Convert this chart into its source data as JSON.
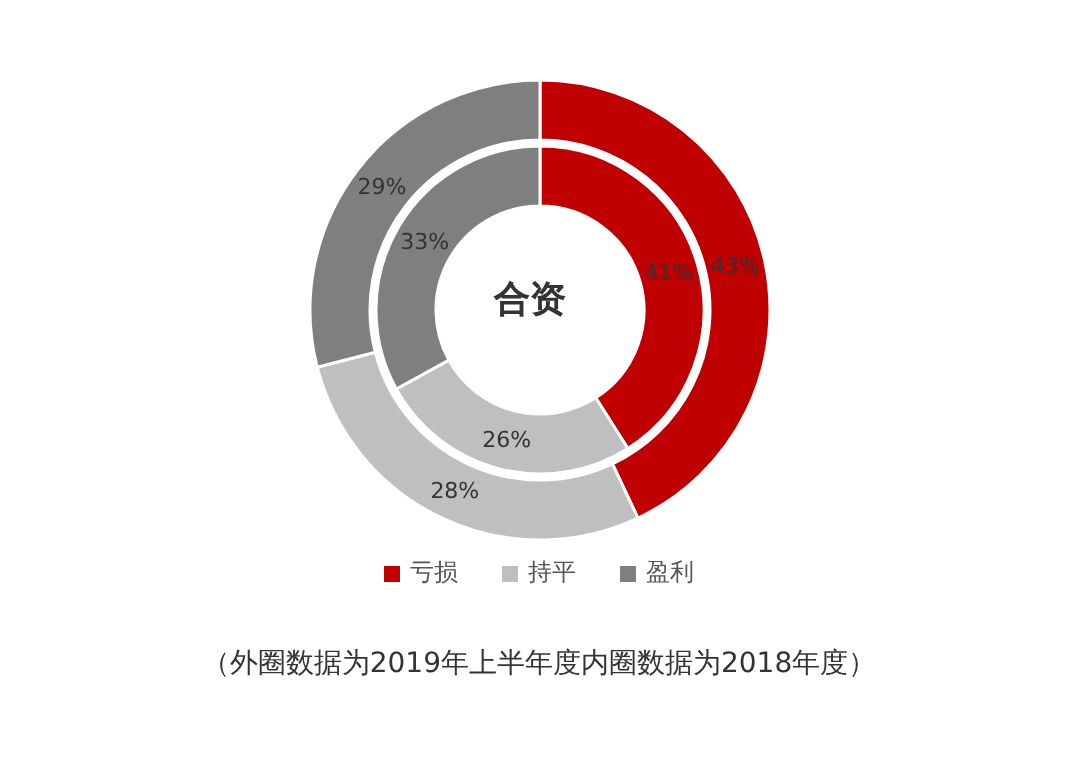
{
  "chart_data": {
    "type": "donut",
    "title": "合资",
    "categories": [
      "亏损",
      "持平",
      "盈利"
    ],
    "series": [
      {
        "values": [
          41,
          26,
          33
        ],
        "value_labels": [
          "41%",
          "26%",
          "33%"
        ],
        "colors": [
          "#c00000",
          "#bfbfbf",
          "#7f7f7f"
        ]
      },
      {
        "values": [
          43,
          28,
          29
        ],
        "value_labels": [
          "43%",
          "28%",
          "29%"
        ],
        "colors": [
          "#c00000",
          "#bfbfbf",
          "#7f7f7f"
        ]
      }
    ],
    "legend": "bottom",
    "annotations": [
      "（外圈数据为2019年上半年度内圈数据为2018年度）"
    ]
  }
}
